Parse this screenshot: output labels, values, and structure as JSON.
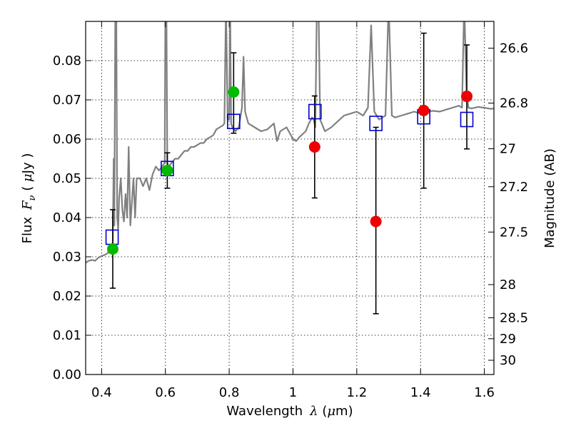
{
  "chart_data": {
    "type": "scatter",
    "title": "",
    "xlabel": {
      "prefix": "Wavelength",
      "symbol": "λ",
      "unit_open": " (",
      "unit_symbol": "μ",
      "unit_rest": "m)"
    },
    "ylabel": {
      "prefix": "Flux",
      "symbol": "F",
      "subscript": "ν",
      "unit_open": " ( ",
      "unit_symbol": "μ",
      "unit_rest": "Jy )"
    },
    "y2label": "Magnitude (AB)",
    "xlim": [
      0.35,
      1.63
    ],
    "ylim": [
      0.0,
      0.09
    ],
    "grid": true,
    "x_ticks": [
      {
        "v": 0.4,
        "label": "0.4"
      },
      {
        "v": 0.6,
        "label": "0.6"
      },
      {
        "v": 0.8,
        "label": "0.8"
      },
      {
        "v": 1.0,
        "label": "1"
      },
      {
        "v": 1.2,
        "label": "1.2"
      },
      {
        "v": 1.4,
        "label": "1.4"
      },
      {
        "v": 1.6,
        "label": "1.6"
      }
    ],
    "y_ticks": [
      {
        "v": 0.0,
        "label": "0.00"
      },
      {
        "v": 0.01,
        "label": "0.01"
      },
      {
        "v": 0.02,
        "label": "0.02"
      },
      {
        "v": 0.03,
        "label": "0.03"
      },
      {
        "v": 0.04,
        "label": "0.04"
      },
      {
        "v": 0.05,
        "label": "0.05"
      },
      {
        "v": 0.06,
        "label": "0.06"
      },
      {
        "v": 0.07,
        "label": "0.07"
      },
      {
        "v": 0.08,
        "label": "0.08"
      }
    ],
    "mag_ticks": [
      {
        "mag": 26.6,
        "label": "26.6"
      },
      {
        "mag": 26.8,
        "label": "26.8"
      },
      {
        "mag": 27.0,
        "label": "27"
      },
      {
        "mag": 27.2,
        "label": "27.2"
      },
      {
        "mag": 27.5,
        "label": "27.5"
      },
      {
        "mag": 28.0,
        "label": "28"
      },
      {
        "mag": 28.5,
        "label": "28.5"
      },
      {
        "mag": 29.0,
        "label": "29"
      },
      {
        "mag": 30.0,
        "label": "30"
      }
    ],
    "model_spectrum": {
      "color": "#808080",
      "points": [
        [
          0.35,
          0.0285
        ],
        [
          0.36,
          0.029
        ],
        [
          0.37,
          0.0292
        ],
        [
          0.38,
          0.029
        ],
        [
          0.39,
          0.0298
        ],
        [
          0.4,
          0.0302
        ],
        [
          0.41,
          0.0305
        ],
        [
          0.42,
          0.031
        ],
        [
          0.425,
          0.0325
        ],
        [
          0.43,
          0.033
        ],
        [
          0.435,
          0.0335
        ],
        [
          0.438,
          0.055
        ],
        [
          0.44,
          0.038
        ],
        [
          0.443,
          0.095
        ],
        [
          0.446,
          0.095
        ],
        [
          0.449,
          0.04
        ],
        [
          0.452,
          0.037
        ],
        [
          0.455,
          0.045
        ],
        [
          0.46,
          0.05
        ],
        [
          0.465,
          0.042
        ],
        [
          0.47,
          0.039
        ],
        [
          0.475,
          0.046
        ],
        [
          0.48,
          0.04
        ],
        [
          0.485,
          0.058
        ],
        [
          0.49,
          0.038
        ],
        [
          0.495,
          0.044
        ],
        [
          0.5,
          0.05
        ],
        [
          0.505,
          0.04
        ],
        [
          0.51,
          0.05
        ],
        [
          0.52,
          0.05
        ],
        [
          0.53,
          0.048
        ],
        [
          0.54,
          0.05
        ],
        [
          0.55,
          0.047
        ],
        [
          0.56,
          0.051
        ],
        [
          0.57,
          0.053
        ],
        [
          0.58,
          0.052
        ],
        [
          0.59,
          0.053
        ],
        [
          0.598,
          0.054
        ],
        [
          0.6,
          0.095
        ],
        [
          0.603,
          0.095
        ],
        [
          0.606,
          0.054
        ],
        [
          0.61,
          0.053
        ],
        [
          0.62,
          0.054
        ],
        [
          0.63,
          0.055
        ],
        [
          0.64,
          0.055
        ],
        [
          0.65,
          0.056
        ],
        [
          0.66,
          0.057
        ],
        [
          0.67,
          0.057
        ],
        [
          0.68,
          0.058
        ],
        [
          0.69,
          0.058
        ],
        [
          0.7,
          0.0585
        ],
        [
          0.71,
          0.059
        ],
        [
          0.72,
          0.059
        ],
        [
          0.73,
          0.06
        ],
        [
          0.74,
          0.0605
        ],
        [
          0.75,
          0.061
        ],
        [
          0.76,
          0.0625
        ],
        [
          0.77,
          0.063
        ],
        [
          0.78,
          0.0635
        ],
        [
          0.785,
          0.064
        ],
        [
          0.79,
          0.095
        ],
        [
          0.795,
          0.065
        ],
        [
          0.8,
          0.065
        ],
        [
          0.803,
          0.095
        ],
        [
          0.806,
          0.064
        ],
        [
          0.81,
          0.063
        ],
        [
          0.82,
          0.062
        ],
        [
          0.83,
          0.063
        ],
        [
          0.84,
          0.068
        ],
        [
          0.845,
          0.081
        ],
        [
          0.85,
          0.067
        ],
        [
          0.86,
          0.064
        ],
        [
          0.87,
          0.0635
        ],
        [
          0.88,
          0.063
        ],
        [
          0.9,
          0.062
        ],
        [
          0.92,
          0.0625
        ],
        [
          0.94,
          0.064
        ],
        [
          0.95,
          0.0595
        ],
        [
          0.96,
          0.062
        ],
        [
          0.98,
          0.063
        ],
        [
          1.0,
          0.06
        ],
        [
          1.01,
          0.0595
        ],
        [
          1.02,
          0.0605
        ],
        [
          1.04,
          0.062
        ],
        [
          1.05,
          0.064
        ],
        [
          1.06,
          0.0655
        ],
        [
          1.065,
          0.065
        ],
        [
          1.07,
          0.063
        ],
        [
          1.075,
          0.095
        ],
        [
          1.08,
          0.095
        ],
        [
          1.085,
          0.065
        ],
        [
          1.09,
          0.064
        ],
        [
          1.1,
          0.062
        ],
        [
          1.12,
          0.063
        ],
        [
          1.14,
          0.0645
        ],
        [
          1.16,
          0.066
        ],
        [
          1.18,
          0.0665
        ],
        [
          1.2,
          0.067
        ],
        [
          1.22,
          0.066
        ],
        [
          1.235,
          0.068
        ],
        [
          1.245,
          0.089
        ],
        [
          1.255,
          0.067
        ],
        [
          1.27,
          0.065
        ],
        [
          1.28,
          0.0655
        ],
        [
          1.29,
          0.066
        ],
        [
          1.3,
          0.095
        ],
        [
          1.31,
          0.066
        ],
        [
          1.32,
          0.0655
        ],
        [
          1.34,
          0.066
        ],
        [
          1.36,
          0.0665
        ],
        [
          1.38,
          0.067
        ],
        [
          1.4,
          0.0665
        ],
        [
          1.42,
          0.067
        ],
        [
          1.44,
          0.0672
        ],
        [
          1.46,
          0.067
        ],
        [
          1.48,
          0.0675
        ],
        [
          1.5,
          0.068
        ],
        [
          1.52,
          0.0685
        ],
        [
          1.53,
          0.068
        ],
        [
          1.537,
          0.095
        ],
        [
          1.544,
          0.072
        ],
        [
          1.55,
          0.068
        ],
        [
          1.56,
          0.0678
        ],
        [
          1.58,
          0.0682
        ],
        [
          1.6,
          0.068
        ],
        [
          1.62,
          0.0677
        ],
        [
          1.63,
          0.0678
        ]
      ]
    },
    "series": [
      {
        "marker": "open-square",
        "color": "#0000cc",
        "points": [
          {
            "x": 0.433,
            "y": 0.035
          },
          {
            "x": 0.606,
            "y": 0.0525
          },
          {
            "x": 0.814,
            "y": 0.0645
          },
          {
            "x": 1.069,
            "y": 0.067
          },
          {
            "x": 1.26,
            "y": 0.064
          },
          {
            "x": 1.41,
            "y": 0.0657
          },
          {
            "x": 1.545,
            "y": 0.065
          }
        ]
      },
      {
        "marker": "filled-circle",
        "color": "#00bb00",
        "points": [
          {
            "x": 0.435,
            "y": 0.032,
            "err": [
              0.022,
              0.042
            ]
          },
          {
            "x": 0.606,
            "y": 0.052,
            "err": [
              0.0475,
              0.0565
            ]
          },
          {
            "x": 0.814,
            "y": 0.072,
            "err": [
              0.0615,
              0.082
            ]
          }
        ]
      },
      {
        "marker": "filled-circle",
        "color": "#ee0000",
        "points": [
          {
            "x": 1.068,
            "y": 0.058,
            "err": [
              0.045,
              0.071
            ]
          },
          {
            "x": 1.26,
            "y": 0.039,
            "err": [
              0.0155,
              0.063
            ]
          },
          {
            "x": 1.41,
            "y": 0.0673,
            "err": [
              0.0475,
              0.087
            ]
          },
          {
            "x": 1.545,
            "y": 0.0709,
            "err": [
              0.0575,
              0.084
            ]
          }
        ]
      }
    ]
  }
}
